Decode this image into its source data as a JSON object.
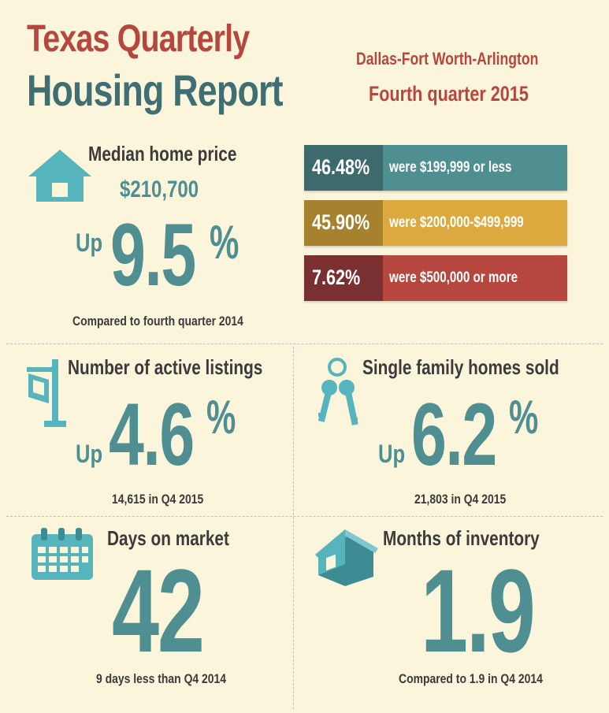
{
  "header": {
    "title_line1": "Texas Quarterly",
    "title_line2": "Housing Report",
    "region": "Dallas-Fort Worth-Arlington",
    "quarter": "Fourth quarter 2015"
  },
  "median_price": {
    "label": "Median home price",
    "price": "$210,700",
    "direction": "Up",
    "change": "9.5",
    "unit": "%",
    "comparison": "Compared to fourth quarter 2014"
  },
  "price_bands": [
    {
      "percent": "46.48%",
      "label": "were $199,999 or less",
      "dark_color": "#3d6a6d",
      "color": "#4f8e91"
    },
    {
      "percent": "45.90%",
      "label": "were $200,000-$499,999",
      "dark_color": "#a6812e",
      "color": "#dca93f"
    },
    {
      "percent": "7.62%",
      "label": "were $500,000 or more",
      "dark_color": "#7a2f30",
      "color": "#b5473f"
    }
  ],
  "active_listings": {
    "label": "Number of active listings",
    "direction": "Up",
    "change": "4.6",
    "unit": "%",
    "detail": "14,615 in Q4 2015"
  },
  "homes_sold": {
    "label": "Single family homes sold",
    "direction": "Up",
    "change": "6.2",
    "unit": "%",
    "detail": "21,803 in Q4 2015"
  },
  "days_on_market": {
    "label": "Days on market",
    "value": "42",
    "detail": "9 days less than Q4 2014"
  },
  "months_inventory": {
    "label": "Months of inventory",
    "value": "1.9",
    "detail": "Compared to 1.9 in Q4 2014"
  },
  "icons": [
    "house-icon",
    "for-sale-sign-icon",
    "keys-icon",
    "calendar-icon",
    "house-3d-icon"
  ],
  "colors": {
    "teal": "#4f8e91",
    "red": "#b5473f",
    "gold": "#dca93f",
    "background": "#fbf5dc"
  }
}
